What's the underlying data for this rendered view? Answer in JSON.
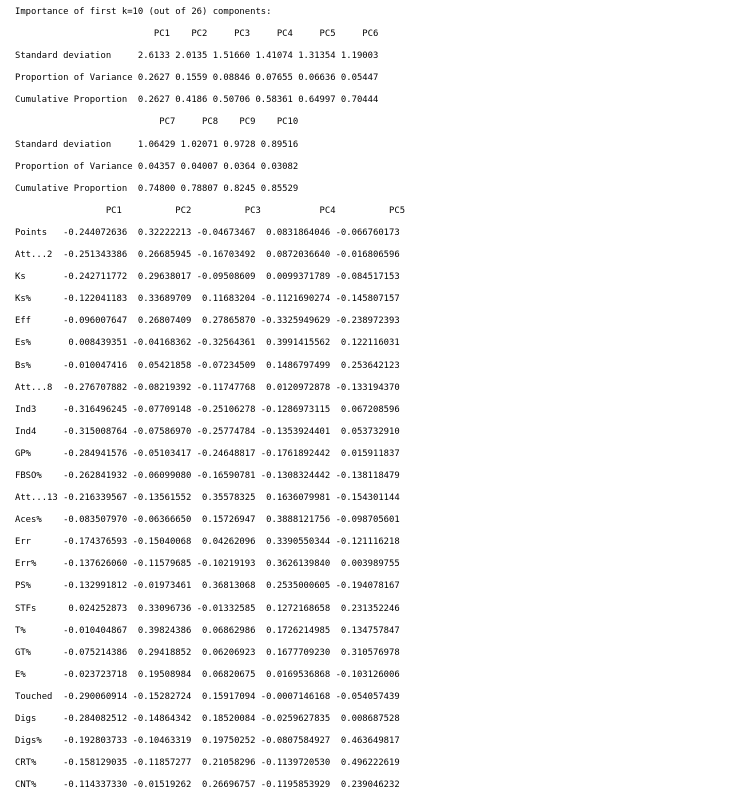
{
  "console_lines": [
    "Importance of first k=10 (out of 26) components:",
    "                          PC1    PC2     PC3     PC4     PC5     PC6",
    "Standard deviation     2.6133 2.0135 1.51660 1.41074 1.31354 1.19003",
    "Proportion of Variance 0.2627 0.1559 0.08846 0.07655 0.06636 0.05447",
    "Cumulative Proportion  0.2627 0.4186 0.50706 0.58361 0.64997 0.70444",
    "                           PC7     PC8    PC9    PC10",
    "Standard deviation     1.06429 1.02071 0.9728 0.89516",
    "Proportion of Variance 0.04357 0.04007 0.0364 0.03082",
    "Cumulative Proportion  0.74800 0.78807 0.8245 0.85529",
    "                 PC1          PC2          PC3           PC4          PC5",
    "Points   -0.244072636  0.32222213 -0.04673467  0.0831864046 -0.066760173",
    "Att...2  -0.251343386  0.26685945 -0.16703492  0.0872036640 -0.016806596",
    "Ks       -0.242711772  0.29638017 -0.09508609  0.0099371789 -0.084517153",
    "Ks%      -0.122041183  0.33689709  0.11683204 -0.1121690274 -0.145807157",
    "Eff      -0.096007647  0.26807409  0.27865870 -0.3325949629 -0.238972393",
    "Es%       0.008439351 -0.04168362 -0.32564361  0.3991415562  0.122116031",
    "Bs%      -0.010047416  0.05421858 -0.07234509  0.1486797499  0.253642123",
    "Att...8  -0.276707882 -0.08219392 -0.11747768  0.0120972878 -0.133194370",
    "Ind3     -0.316496245 -0.07709148 -0.25106278 -0.1286973115  0.067208596",
    "Ind4     -0.315008764 -0.07586970 -0.25774784 -0.1353924401  0.053732910",
    "GP%      -0.284941576 -0.05103417 -0.24648817 -0.1761892442  0.015911837",
    "FBSO%    -0.262841932 -0.06099080 -0.16590781 -0.1308324442 -0.138118479",
    "Att...13 -0.216339567 -0.13561552  0.35578325  0.1636079981 -0.154301144",
    "Aces%    -0.083507970 -0.06366650  0.15726947  0.3888121756 -0.098705601",
    "Err      -0.174376593 -0.15040068  0.04262096  0.3390550344 -0.121116218",
    "Err%     -0.137626060 -0.11579685 -0.10219193  0.3626139840  0.003989755",
    "PS%      -0.132991812 -0.01973461  0.36813068  0.2535000605 -0.194078167",
    "STFs      0.024252873  0.33096736 -0.01332585  0.1272168658  0.231352246",
    "T%       -0.010404867  0.39824386  0.06862986  0.1726214985  0.134757847",
    "GT%      -0.075214386  0.29418852  0.06206923  0.1677709230  0.310576978",
    "E%       -0.023723718  0.19508984  0.06820675  0.0169536868 -0.103126006",
    "Touched  -0.290060914 -0.15282724  0.15917094 -0.0007146168 -0.054057439",
    "Digs     -0.284082512 -0.14864342  0.18520084 -0.0259627835  0.008687528",
    "Digs%    -0.192803733 -0.10463319  0.19750252 -0.0807584927  0.463649817",
    "CRT%     -0.158129035 -0.11857277  0.21058296 -0.1139720530  0.496222619",
    "CNT%     -0.114337330 -0.01519262  0.26696757 -0.1195853929  0.239046232"
  ]
}
